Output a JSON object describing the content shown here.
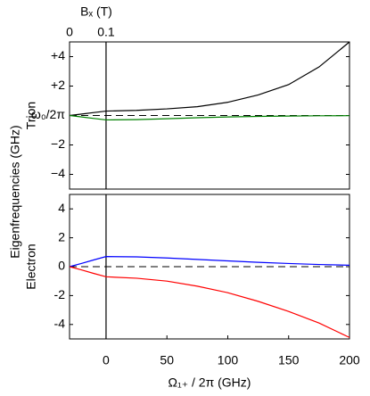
{
  "shared_ylabel": "Eigenfrequencies (GHz)",
  "chart_data": [
    {
      "type": "line",
      "ylabel": "Trion",
      "x": [
        -30,
        -20,
        -10,
        0,
        25,
        50,
        75,
        100,
        125,
        150,
        175,
        200
      ],
      "series": [
        {
          "color": "#000000",
          "values": [
            0,
            0.1,
            0.2,
            0.3,
            0.35,
            0.45,
            0.6,
            0.9,
            1.4,
            2.1,
            3.3,
            5.0
          ]
        },
        {
          "color": "#008000",
          "values": [
            0,
            -0.1,
            -0.2,
            -0.3,
            -0.28,
            -0.22,
            -0.15,
            -0.1,
            -0.06,
            -0.04,
            -0.02,
            -0.01
          ]
        }
      ],
      "xlim": [
        -30,
        200
      ],
      "ylim": [
        -5,
        5
      ],
      "yticks": [
        {
          "value": 4,
          "label": "+4"
        },
        {
          "value": 2,
          "label": "+2"
        },
        {
          "value": 0,
          "label": "ω₀/2π"
        },
        {
          "value": -2,
          "label": "−2"
        },
        {
          "value": -4,
          "label": "−4"
        }
      ],
      "x2label": "Bₓ (T)",
      "x2ticks": [
        {
          "value": -30,
          "label": "0"
        },
        {
          "value": 0,
          "label": "0.1"
        }
      ],
      "hline": 0,
      "vline": 0
    },
    {
      "type": "line",
      "ylabel": "Electron",
      "x": [
        -30,
        -20,
        -10,
        0,
        25,
        50,
        75,
        100,
        125,
        150,
        175,
        200
      ],
      "series": [
        {
          "color": "#0000ff",
          "values": [
            0,
            0.23,
            0.47,
            0.7,
            0.68,
            0.6,
            0.5,
            0.4,
            0.3,
            0.22,
            0.15,
            0.1
          ]
        },
        {
          "color": "#ff0000",
          "values": [
            0,
            -0.23,
            -0.47,
            -0.7,
            -0.8,
            -1.0,
            -1.35,
            -1.8,
            -2.4,
            -3.1,
            -3.9,
            -4.9
          ]
        }
      ],
      "xlim": [
        -30,
        200
      ],
      "ylim": [
        -5,
        5
      ],
      "yticks": [
        4,
        2,
        0,
        -2,
        -4
      ],
      "xlabel": "Ω₁₊ / 2π (GHz)",
      "xticks": [
        0,
        50,
        100,
        150,
        200
      ],
      "hline": 0,
      "vline": 0
    }
  ]
}
